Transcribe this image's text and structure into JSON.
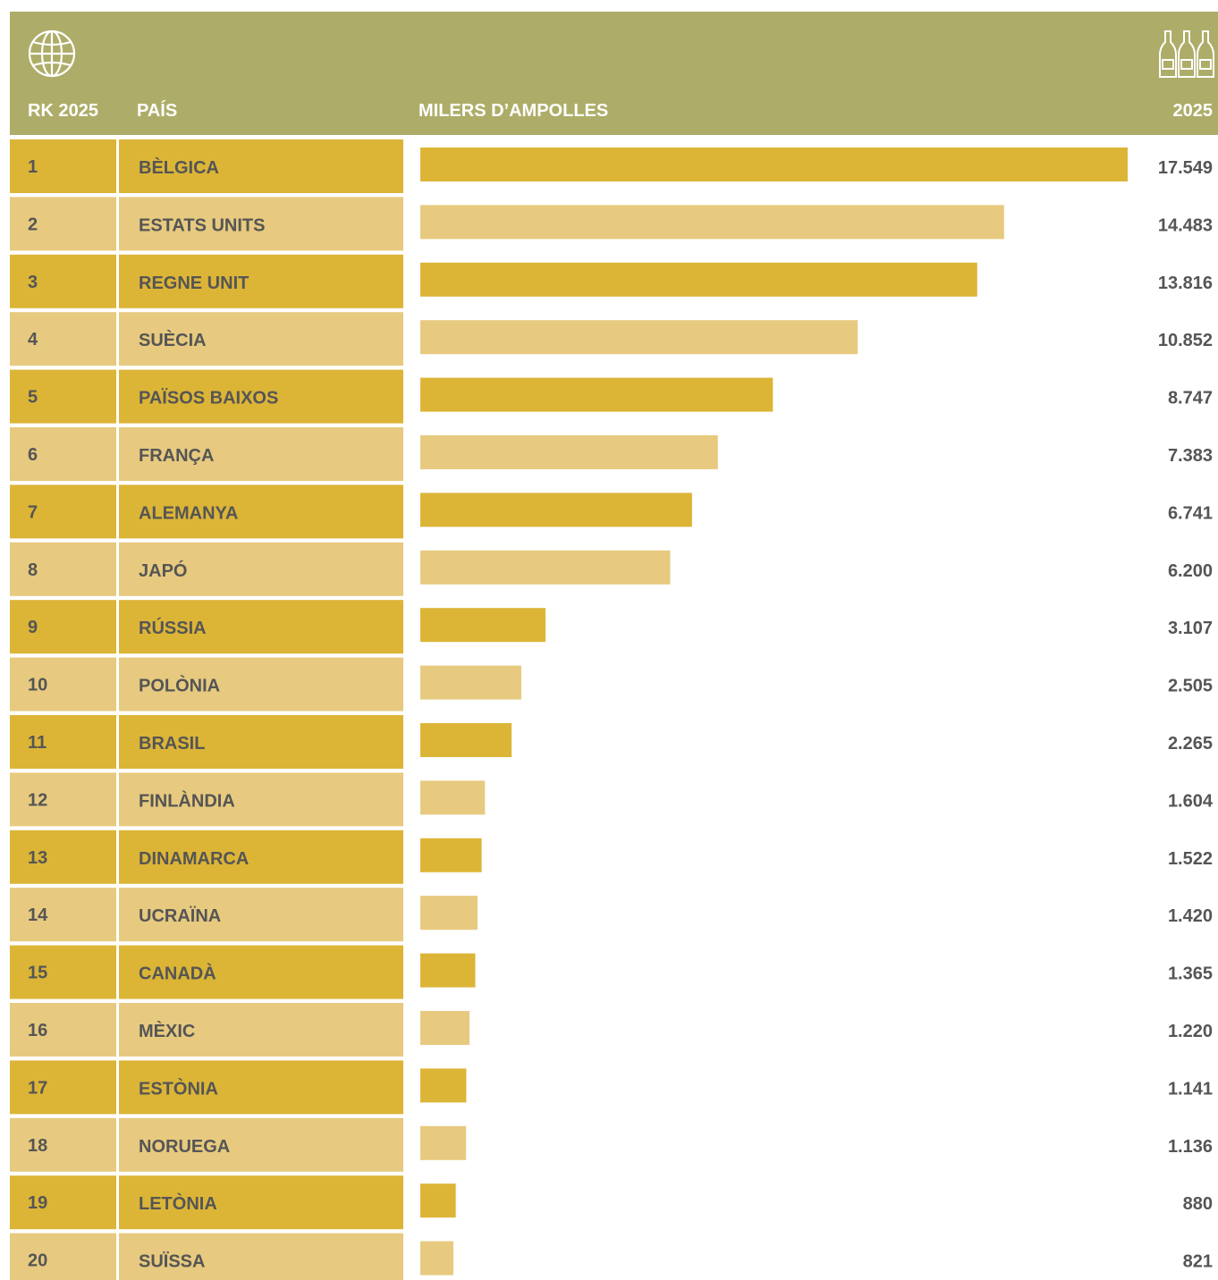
{
  "header": {
    "rank_label": "RK 2025",
    "country_label": "PAÍS",
    "measure_label": "MILERS D’AMPOLLES",
    "year_label": "2025",
    "left_icon": "globe-icon",
    "right_icon": "champagne-bottles-icon"
  },
  "colors": {
    "header_bg": "#adad69",
    "dark_row": "#dcb537",
    "light_row": "#e7ca7f",
    "text": "#555555"
  },
  "chart_data": {
    "type": "bar",
    "orientation": "horizontal",
    "xlabel": "MILERS D’AMPOLLES",
    "ylabel": "PAÍS",
    "xlim": [
      0,
      17549
    ],
    "ranks": [
      "1",
      "2",
      "3",
      "4",
      "5",
      "6",
      "7",
      "8",
      "9",
      "10",
      "11",
      "12",
      "13",
      "14",
      "15",
      "16",
      "17",
      "18",
      "19",
      "20"
    ],
    "categories": [
      "BÈLGICA",
      "ESTATS UNITS",
      "REGNE UNIT",
      "SUÈCIA",
      "PAÏSOS BAIXOS",
      "FRANÇA",
      "ALEMANYA",
      "JAPÓ",
      "RÚSSIA",
      "POLÒNIA",
      "BRASIL",
      "FINLÀNDIA",
      "DINAMARCA",
      "UCRAÏNA",
      "CANADÀ",
      "MÈXIC",
      "ESTÒNIA",
      "NORUEGA",
      "LETÒNIA",
      "SUÏSSA"
    ],
    "values": [
      17549,
      14483,
      13816,
      10852,
      8747,
      7383,
      6741,
      6200,
      3107,
      2505,
      2265,
      1604,
      1522,
      1420,
      1365,
      1220,
      1141,
      1136,
      880,
      821
    ],
    "value_labels": [
      "17.549",
      "14.483",
      "13.816",
      "10.852",
      "8.747",
      "7.383",
      "6.741",
      "6.200",
      "3.107",
      "2.505",
      "2.265",
      "1.604",
      "1.522",
      "1.420",
      "1.365",
      "1.220",
      "1.141",
      "1.136",
      "880",
      "821"
    ]
  }
}
